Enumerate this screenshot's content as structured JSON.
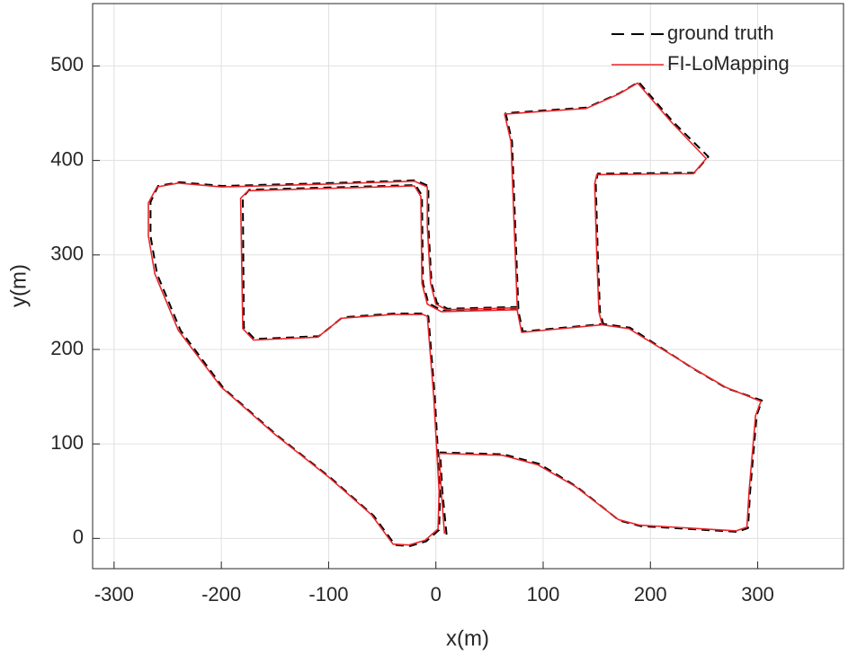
{
  "chart_data": {
    "type": "line",
    "xlabel": "x(m)",
    "ylabel": "y(m)",
    "xlim": [
      -320,
      380
    ],
    "xticks": [
      -300,
      -200,
      -100,
      0,
      100,
      200,
      300
    ],
    "ylim": [
      -32,
      566
    ],
    "yticks": [
      0,
      100,
      200,
      300,
      400,
      500
    ],
    "grid": true,
    "legend": "top-right",
    "series": [
      {
        "name": "ground truth",
        "color": "#000000",
        "dash": true,
        "x": [
          10,
          6,
          4,
          63,
          96,
          131,
          171,
          191,
          281,
          291,
          293,
          299,
          304,
          271,
          241,
          181,
          156,
          81,
          77,
          75,
          71,
          65,
          101,
          141,
          171,
          189,
          221,
          254,
          241,
          151,
          149,
          151,
          153,
          156,
          null,
          77,
          11,
          1,
          -4,
          -7,
          -7,
          -19,
          -99,
          -199,
          -239,
          -259,
          -266,
          -266,
          -260,
          -238,
          -198,
          -148,
          -98,
          -58,
          -38,
          -24,
          -9,
          3,
          4,
          -1,
          -7,
          -11,
          -39,
          -87,
          -99,
          -109,
          -169,
          -179,
          -180,
          -174,
          -19,
          -13,
          -12,
          -7,
          6,
          77
        ],
        "values": [
          4,
          50,
          91,
          89,
          79,
          55,
          19,
          13,
          7,
          11,
          50,
          130,
          146,
          159,
          179,
          223,
          227,
          219,
          240,
          300,
          420,
          450,
          453,
          456,
          471,
          483,
          441,
          404,
          387,
          386,
          376,
          300,
          240,
          227,
          null,
          245,
          243,
          249,
          270,
          330,
          373,
          379,
          376,
          373,
          377,
          373,
          356,
          320,
          280,
          220,
          159,
          109,
          64,
          24,
          -7,
          -8,
          -3,
          9,
          50,
          150,
          235,
          238,
          238,
          234,
          223,
          214,
          211,
          223,
          361,
          369,
          374,
          363,
          270,
          249,
          241,
          243
        ]
      },
      {
        "name": "FI-LoMapping",
        "color": "#e8262a",
        "dash": false,
        "x": [
          8,
          5,
          3,
          62,
          95,
          130,
          170,
          190,
          280,
          290,
          292,
          298,
          303,
          270,
          240,
          180,
          155,
          80,
          76,
          74,
          70,
          64,
          100,
          140,
          170,
          188,
          220,
          252,
          240,
          150,
          148,
          150,
          152,
          155,
          null,
          76,
          10,
          0,
          -5,
          -8,
          -8,
          -20,
          -100,
          -200,
          -240,
          -260,
          -268,
          -268,
          -262,
          -240,
          -200,
          -150,
          -100,
          -60,
          -40,
          -25,
          -10,
          2,
          3,
          -2,
          -8,
          -12,
          -40,
          -88,
          -100,
          -110,
          -170,
          -180,
          -182,
          -175,
          -20,
          -14,
          -13,
          -8,
          5,
          76
        ],
        "values": [
          5,
          50,
          90,
          88,
          78,
          55,
          20,
          14,
          8,
          12,
          50,
          130,
          145,
          160,
          180,
          222,
          226,
          218,
          240,
          300,
          420,
          449,
          452,
          455,
          470,
          482,
          440,
          402,
          386,
          385,
          375,
          300,
          240,
          226,
          null,
          244,
          242,
          248,
          270,
          330,
          372,
          378,
          375,
          372,
          376,
          372,
          355,
          320,
          280,
          220,
          160,
          110,
          65,
          25,
          -6,
          -7,
          -2,
          10,
          50,
          150,
          235,
          237,
          237,
          233,
          222,
          213,
          210,
          222,
          360,
          368,
          373,
          362,
          270,
          248,
          240,
          242
        ]
      }
    ]
  }
}
